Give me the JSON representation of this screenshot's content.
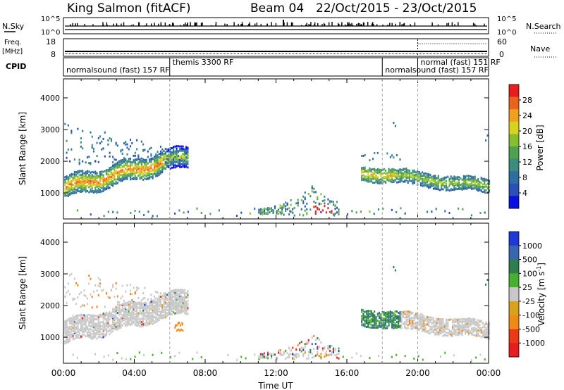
{
  "header": {
    "station": "King Salmon (fitACF)",
    "beam": "Beam 04",
    "daterange": "22/Oct/2015 - 23/Oct/2015"
  },
  "strip_labels": {
    "nsky": "N.Sky",
    "nsearch": "N.Search",
    "freq_line1": "Freq.",
    "freq_line2": "[MHz]",
    "nave": "Nave",
    "cpid": "CPID"
  },
  "strip_ticks": {
    "nsky_left": [
      "10^5",
      "10^0"
    ],
    "nsky_right": [
      "10^5",
      "10^0"
    ],
    "freq_left": [
      "18",
      "8"
    ],
    "freq_right": [
      "60",
      "0"
    ]
  },
  "cpid_segments": [
    {
      "label": "normalsound (fast) 157 RF",
      "start_h": 0,
      "end_h": 6.0
    },
    {
      "label": "themis 3300 RF",
      "start_h": 6.0,
      "end_h": 18.0
    },
    {
      "label": "normalsound (fast) 157 RF",
      "start_h": 18.0,
      "end_h": 20.0
    },
    {
      "label": "normal (fast) 151 RF",
      "start_h": 20.0,
      "end_h": 24.0
    }
  ],
  "chart_data": [
    {
      "type": "heatmap",
      "name": "power",
      "ylabel": "Slant Range [km]",
      "xlabel": "Time UT",
      "xlim_hours": [
        0,
        24
      ],
      "ylim_km": [
        180,
        4600
      ],
      "x_ticks": [
        "00:00",
        "04:00",
        "08:00",
        "12:00",
        "16:00",
        "20:00",
        "00:00"
      ],
      "y_ticks": [
        1000,
        2000,
        3000,
        4000
      ],
      "colorbar_label": "Power [dB]",
      "colorbar_ticks": [
        4,
        8,
        12,
        16,
        20,
        24,
        28
      ],
      "colorbar_range": [
        0,
        30
      ],
      "colorscale": [
        "#0a10e0",
        "#2a4fb8",
        "#2f6ea0",
        "#3c8c7c",
        "#4fa050",
        "#86be2f",
        "#d6d21e",
        "#f0a01e",
        "#e8641e",
        "#e81e1e"
      ],
      "regions": [
        {
          "t0": 0.0,
          "t1": 7.0,
          "r0": 800,
          "r1": 1900,
          "center": "rising band 1150->2300 km",
          "peak_db": 24
        },
        {
          "t0": 0.0,
          "t1": 6.5,
          "r0": 2000,
          "r1": 3300,
          "center": "diffuse",
          "peak_db": 10
        },
        {
          "t0": 11.0,
          "t1": 15.5,
          "r0": 250,
          "r1": 1300,
          "center": "ground scatter near 14.5 h",
          "peak_db": 30
        },
        {
          "t0": 16.8,
          "t1": 24.0,
          "r0": 1000,
          "r1": 2200,
          "center": "descending band 1600->1200 km",
          "peak_db": 18
        }
      ]
    },
    {
      "type": "heatmap",
      "name": "velocity",
      "ylabel": "Slant Range [km]",
      "xlabel": "Time UT",
      "xlim_hours": [
        0,
        24
      ],
      "ylim_km": [
        180,
        4600
      ],
      "x_ticks": [
        "00:00",
        "04:00",
        "08:00",
        "12:00",
        "16:00",
        "20:00",
        "00:00"
      ],
      "y_ticks": [
        1000,
        2000,
        3000,
        4000
      ],
      "colorbar_label": "Velocity [m s^-1]",
      "colorbar_ticks": [
        "1000",
        "500",
        "100",
        "25",
        "-25",
        "-100",
        "-500",
        "-1000"
      ],
      "colorscale": [
        "#1f38d8",
        "#3a66b0",
        "#2e7d4e",
        "#48b030",
        "#c8c8c8",
        "#d9a21e",
        "#f08a16",
        "#e83a16",
        "#e81e1e"
      ],
      "regions": [
        {
          "t0": 0.0,
          "t1": 7.0,
          "r0": 800,
          "r1": 2800,
          "class": "ground scatter (grey)"
        },
        {
          "t0": 16.8,
          "t1": 19.0,
          "r0": 1200,
          "r1": 2200,
          "class": "positive 100-500 (green)"
        },
        {
          "t0": 19.0,
          "t1": 24.0,
          "r0": 1000,
          "r1": 1600,
          "class": "ground scatter (grey)"
        },
        {
          "t0": 11.0,
          "t1": 15.5,
          "r0": 250,
          "r1": 1200,
          "class": "mixed"
        }
      ]
    }
  ]
}
